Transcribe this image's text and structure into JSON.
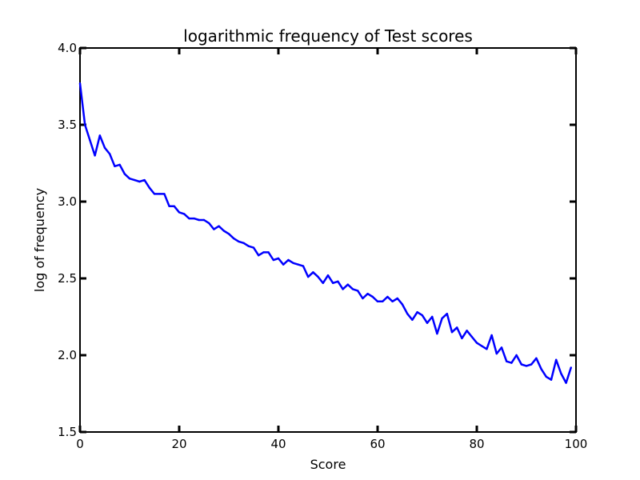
{
  "chart_data": {
    "type": "line",
    "title": "logarithmic frequency of Test scores",
    "xlabel": "Score",
    "ylabel": "log of frequency",
    "xlim": [
      0,
      100
    ],
    "ylim": [
      1.5,
      4.0
    ],
    "xticks": [
      "0",
      "20",
      "40",
      "60",
      "80",
      "100"
    ],
    "yticks": [
      "1.5",
      "2.0",
      "2.5",
      "3.0",
      "3.5",
      "4.0"
    ],
    "grid": false,
    "line_color": "#0000ff",
    "series": [
      {
        "x": [
          0,
          1,
          2,
          3,
          4,
          5,
          6,
          7,
          8,
          9,
          10,
          11,
          12,
          13,
          14,
          15,
          16,
          17,
          18,
          19,
          20,
          21,
          22,
          23,
          24,
          25,
          26,
          27,
          28,
          29,
          30,
          31,
          32,
          33,
          34,
          35,
          36,
          37,
          38,
          39,
          40,
          41,
          42,
          43,
          44,
          45,
          46,
          47,
          48,
          49,
          50,
          51,
          52,
          53,
          54,
          55,
          56,
          57,
          58,
          59,
          60,
          61,
          62,
          63,
          64,
          65,
          66,
          67,
          68,
          69,
          70,
          71,
          72,
          73,
          74,
          75,
          76,
          77,
          78,
          79,
          80,
          81,
          82,
          83,
          84,
          85,
          86,
          87,
          88,
          89,
          90,
          91,
          92,
          93,
          94,
          95,
          96,
          97,
          98,
          99
        ],
        "y": [
          3.77,
          3.5,
          3.4,
          3.3,
          3.43,
          3.35,
          3.31,
          3.23,
          3.24,
          3.18,
          3.15,
          3.14,
          3.13,
          3.14,
          3.09,
          3.05,
          3.05,
          3.05,
          2.97,
          2.97,
          2.93,
          2.92,
          2.89,
          2.89,
          2.88,
          2.88,
          2.86,
          2.82,
          2.84,
          2.81,
          2.79,
          2.76,
          2.74,
          2.73,
          2.71,
          2.7,
          2.65,
          2.67,
          2.67,
          2.62,
          2.63,
          2.59,
          2.62,
          2.6,
          2.59,
          2.58,
          2.51,
          2.54,
          2.51,
          2.47,
          2.52,
          2.47,
          2.48,
          2.43,
          2.46,
          2.43,
          2.42,
          2.37,
          2.4,
          2.38,
          2.35,
          2.35,
          2.38,
          2.35,
          2.37,
          2.33,
          2.27,
          2.23,
          2.28,
          2.26,
          2.21,
          2.25,
          2.14,
          2.24,
          2.27,
          2.15,
          2.18,
          2.11,
          2.16,
          2.12,
          2.08,
          2.06,
          2.04,
          2.13,
          2.01,
          2.05,
          1.96,
          1.95,
          2.0,
          1.94,
          1.93,
          1.94,
          1.98,
          1.91,
          1.86,
          1.84,
          1.97,
          1.88,
          1.82,
          1.92
        ]
      }
    ]
  }
}
